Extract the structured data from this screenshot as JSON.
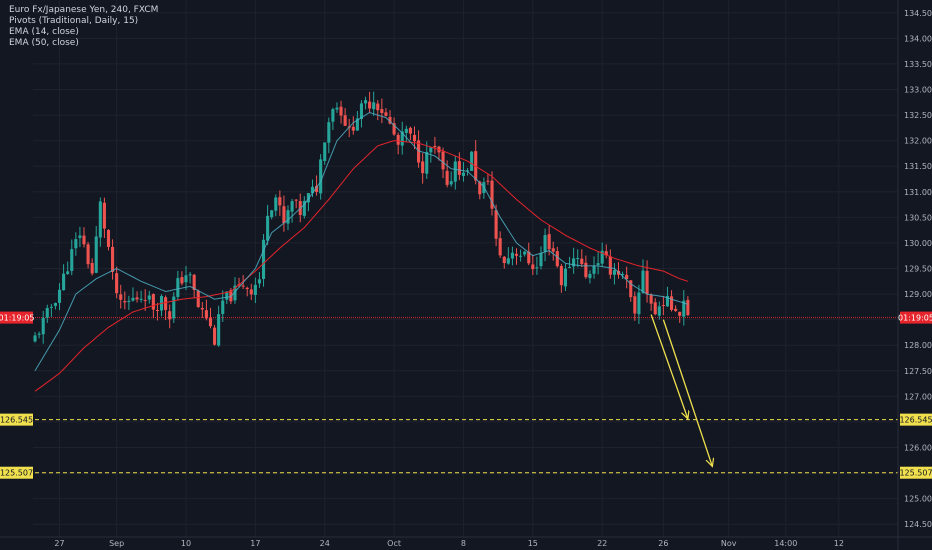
{
  "legend": {
    "title": "Euro Fx/Japanese Yen, 240, FXCM",
    "line2": "Pivots (Traditional, Daily, 15)",
    "line3": "EMA (14, close)",
    "line4": "EMA (50, close)"
  },
  "colors": {
    "background": "#131722",
    "grid": "#1e222d",
    "up": "#26a69a",
    "down": "#ef5350",
    "ema14": "#4fb0c6",
    "ema50": "#e5242b",
    "pivot": "#f0e04d",
    "current": "#e5242b"
  },
  "chart_data": {
    "type": "candlestick",
    "title": "Euro Fx/Japanese Yen, 240, FXCM",
    "ylim": [
      124.25,
      134.75
    ],
    "y_ticks": [
      "124.500",
      "125.000",
      "125.500",
      "126.000",
      "126.500",
      "127.000",
      "127.500",
      "128.000",
      "128.500",
      "129.000",
      "129.500",
      "130.000",
      "130.500",
      "131.000",
      "131.500",
      "132.000",
      "132.500",
      "133.000",
      "133.500",
      "134.000",
      "134.500"
    ],
    "x_ticks": [
      {
        "label": "27",
        "bar": 6
      },
      {
        "label": "Sep",
        "bar": 20
      },
      {
        "label": "10",
        "bar": 37
      },
      {
        "label": "17",
        "bar": 54
      },
      {
        "label": "24",
        "bar": 71
      },
      {
        "label": "Oct",
        "bar": 88
      },
      {
        "label": "8",
        "bar": 105
      },
      {
        "label": "15",
        "bar": 122
      },
      {
        "label": "22",
        "bar": 139
      },
      {
        "label": "26",
        "bar": 154
      },
      {
        "label": "Nov",
        "bar": 170
      },
      {
        "label": "14:00",
        "bar": 184
      },
      {
        "label": "12",
        "bar": 197
      }
    ],
    "bars_total": 212,
    "current_price_tag": "01:19:05",
    "current_price": 128.54,
    "pivot_levels": [
      {
        "label": "126.545",
        "value": 126.545
      },
      {
        "label": "125.507",
        "value": 125.507
      }
    ],
    "arrows": [
      {
        "from_bar": 151,
        "from_price": 128.6,
        "to_bar": 160,
        "to_price": 126.56
      },
      {
        "from_bar": 154,
        "from_price": 128.5,
        "to_bar": 166,
        "to_price": 125.63
      }
    ],
    "ema14_label": "EMA (14, close)",
    "ema50_label": "EMA (50, close)",
    "close_anchors": [
      [
        0,
        128.15
      ],
      [
        3,
        128.6
      ],
      [
        6,
        129.1
      ],
      [
        9,
        129.8
      ],
      [
        11,
        130.2
      ],
      [
        14,
        129.4
      ],
      [
        16,
        130.75
      ],
      [
        18,
        129.9
      ],
      [
        19,
        129.3
      ],
      [
        21,
        128.75
      ],
      [
        24,
        128.9
      ],
      [
        27,
        129.0
      ],
      [
        29,
        128.75
      ],
      [
        31,
        128.9
      ],
      [
        33,
        128.6
      ],
      [
        35,
        129.2
      ],
      [
        37,
        129.4
      ],
      [
        38,
        129.3
      ],
      [
        40,
        128.75
      ],
      [
        42,
        128.55
      ],
      [
        44,
        128.1
      ],
      [
        46,
        128.85
      ],
      [
        49,
        129.05
      ],
      [
        51,
        129.2
      ],
      [
        53,
        129.1
      ],
      [
        55,
        129.3
      ],
      [
        57,
        130.65
      ],
      [
        59,
        130.9
      ],
      [
        61,
        130.35
      ],
      [
        63,
        130.8
      ],
      [
        65,
        130.6
      ],
      [
        67,
        130.9
      ],
      [
        69,
        131.1
      ],
      [
        71,
        132.1
      ],
      [
        73,
        132.7
      ],
      [
        75,
        132.6
      ],
      [
        77,
        132.15
      ],
      [
        79,
        132.5
      ],
      [
        81,
        132.7
      ],
      [
        83,
        132.8
      ],
      [
        85,
        132.6
      ],
      [
        87,
        132.3
      ],
      [
        89,
        131.9
      ],
      [
        91,
        132.2
      ],
      [
        93,
        131.9
      ],
      [
        95,
        131.5
      ],
      [
        97,
        131.85
      ],
      [
        99,
        131.7
      ],
      [
        101,
        131.0
      ],
      [
        103,
        131.6
      ],
      [
        105,
        131.3
      ],
      [
        107,
        131.7
      ],
      [
        109,
        130.9
      ],
      [
        111,
        131.3
      ],
      [
        113,
        130.0
      ],
      [
        115,
        129.6
      ],
      [
        117,
        129.85
      ],
      [
        119,
        129.8
      ],
      [
        121,
        129.65
      ],
      [
        123,
        129.5
      ],
      [
        125,
        130.1
      ],
      [
        127,
        129.85
      ],
      [
        129,
        129.25
      ],
      [
        131,
        129.6
      ],
      [
        133,
        129.8
      ],
      [
        135,
        129.3
      ],
      [
        137,
        129.6
      ],
      [
        139,
        129.75
      ],
      [
        141,
        129.5
      ],
      [
        143,
        129.45
      ],
      [
        145,
        129.2
      ],
      [
        147,
        128.5
      ],
      [
        149,
        129.5
      ],
      [
        150,
        129.05
      ],
      [
        152,
        128.6
      ],
      [
        154,
        128.9
      ],
      [
        156,
        128.75
      ],
      [
        157,
        128.8
      ],
      [
        158,
        128.6
      ],
      [
        159,
        128.95
      ],
      [
        160,
        128.7
      ]
    ],
    "ema14_anchors": [
      [
        0,
        127.5
      ],
      [
        6,
        128.3
      ],
      [
        10,
        129.0
      ],
      [
        15,
        129.3
      ],
      [
        20,
        129.5
      ],
      [
        26,
        129.25
      ],
      [
        32,
        129.05
      ],
      [
        38,
        129.15
      ],
      [
        44,
        128.9
      ],
      [
        48,
        128.95
      ],
      [
        54,
        129.5
      ],
      [
        58,
        130.2
      ],
      [
        62,
        130.45
      ],
      [
        66,
        130.75
      ],
      [
        70,
        131.2
      ],
      [
        74,
        132.0
      ],
      [
        78,
        132.35
      ],
      [
        82,
        132.55
      ],
      [
        86,
        132.45
      ],
      [
        90,
        132.15
      ],
      [
        94,
        131.8
      ],
      [
        98,
        131.7
      ],
      [
        102,
        131.45
      ],
      [
        106,
        131.4
      ],
      [
        110,
        131.1
      ],
      [
        114,
        130.5
      ],
      [
        118,
        130.0
      ],
      [
        122,
        129.75
      ],
      [
        126,
        129.85
      ],
      [
        130,
        129.6
      ],
      [
        134,
        129.55
      ],
      [
        138,
        129.55
      ],
      [
        142,
        129.5
      ],
      [
        146,
        129.2
      ],
      [
        150,
        129.0
      ],
      [
        154,
        128.95
      ],
      [
        158,
        128.85
      ],
      [
        160,
        128.8
      ]
    ],
    "ema50_anchors": [
      [
        0,
        127.1
      ],
      [
        6,
        127.45
      ],
      [
        12,
        127.95
      ],
      [
        18,
        128.35
      ],
      [
        24,
        128.65
      ],
      [
        30,
        128.8
      ],
      [
        36,
        128.9
      ],
      [
        42,
        128.95
      ],
      [
        48,
        129.05
      ],
      [
        54,
        129.45
      ],
      [
        60,
        129.9
      ],
      [
        66,
        130.3
      ],
      [
        72,
        130.85
      ],
      [
        78,
        131.45
      ],
      [
        84,
        131.9
      ],
      [
        88,
        132.0
      ],
      [
        94,
        131.95
      ],
      [
        100,
        131.8
      ],
      [
        106,
        131.6
      ],
      [
        112,
        131.3
      ],
      [
        118,
        130.85
      ],
      [
        124,
        130.45
      ],
      [
        130,
        130.15
      ],
      [
        136,
        129.9
      ],
      [
        142,
        129.7
      ],
      [
        148,
        129.55
      ],
      [
        154,
        129.45
      ],
      [
        158,
        129.3
      ],
      [
        160,
        129.25
      ]
    ]
  }
}
